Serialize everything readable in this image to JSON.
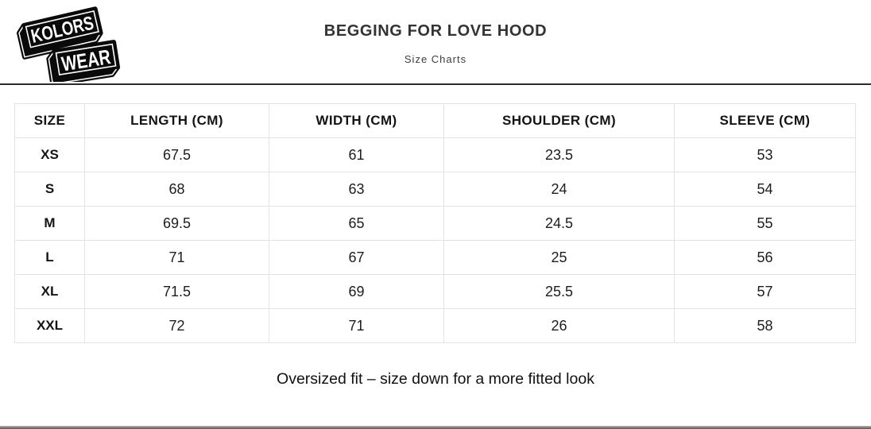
{
  "brand": {
    "line1": "KOLORS",
    "line2": "WEAR"
  },
  "header": {
    "title": "BEGGING FOR LOVE HOOD",
    "subtitle": "Size Charts"
  },
  "table": {
    "columns": [
      "SIZE",
      "LENGTH (CM)",
      "WIDTH (CM)",
      "SHOULDER (CM)",
      "SLEEVE (CM)"
    ],
    "rows": [
      [
        "XS",
        "67.5",
        "61",
        "23.5",
        "53"
      ],
      [
        "S",
        "68",
        "63",
        "24",
        "54"
      ],
      [
        "M",
        "69.5",
        "65",
        "24.5",
        "55"
      ],
      [
        "L",
        "71",
        "67",
        "25",
        "56"
      ],
      [
        "XL",
        "71.5",
        "69",
        "25.5",
        "57"
      ],
      [
        "XXL",
        "72",
        "71",
        "26",
        "58"
      ]
    ]
  },
  "footer": {
    "note": "Oversized fit – size down for a more fitted look"
  },
  "colors": {
    "divider": "#2b2b2b",
    "table_border": "#e3e3e3",
    "title_text": "#333333",
    "logo_bg": "#0a0a0a",
    "logo_text": "#ffffff",
    "bottom_bar": "#55524d"
  }
}
